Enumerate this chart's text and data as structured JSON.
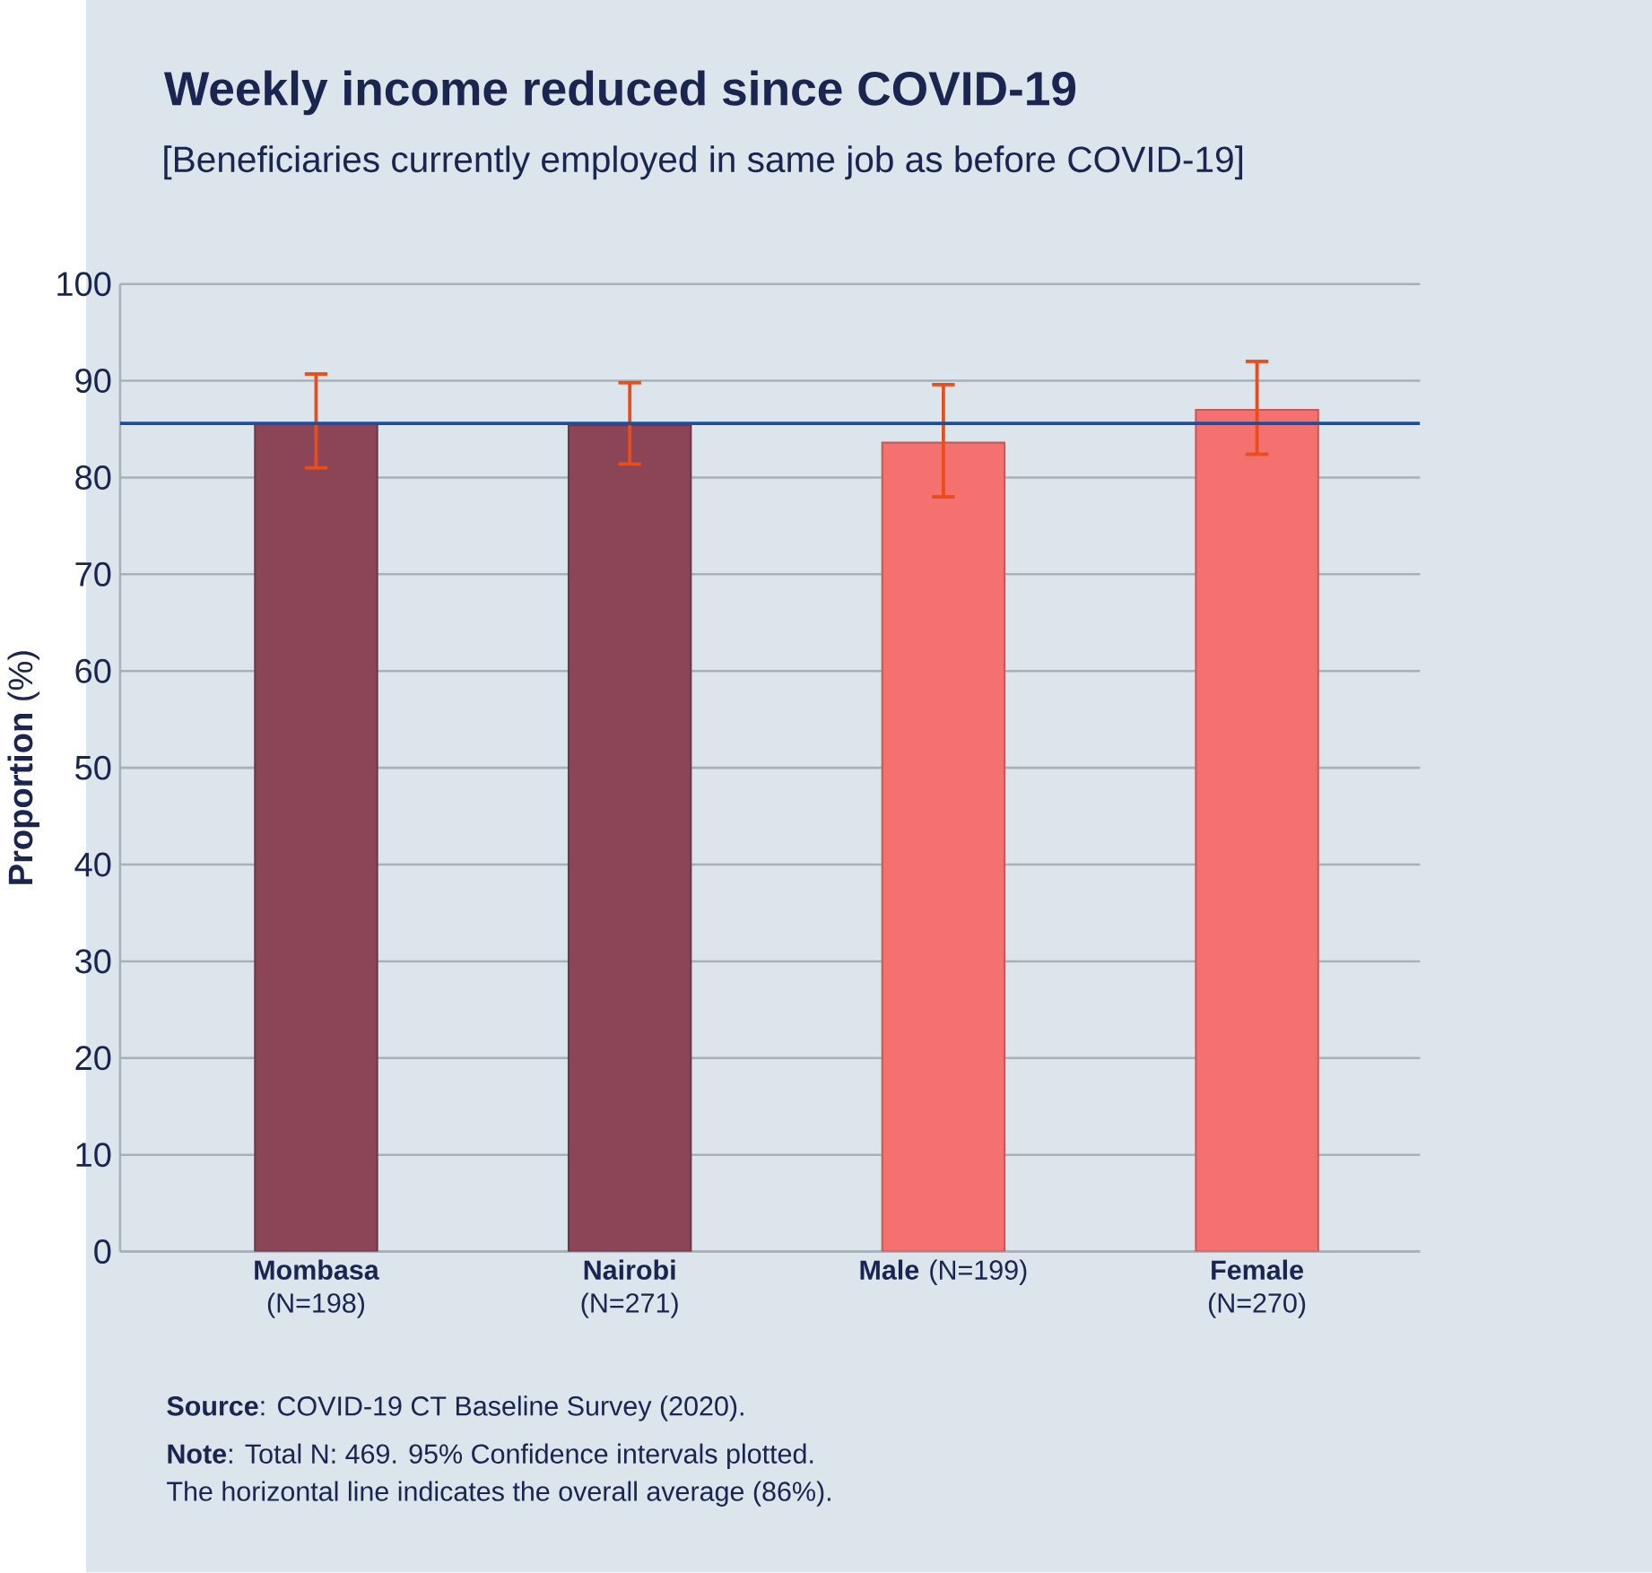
{
  "chart_data": {
    "type": "bar",
    "title": "Weekly income reduced since COVID-19",
    "subtitle": "[Beneficiaries currently employed in same job as before COVID-19]",
    "ylabel": "**Proportion** (%)",
    "categories": [
      "**Mombasa** (N=198)",
      "**Nairobi** (N=271)",
      "**Male** (N=199)",
      "**Female** (N=270)"
    ],
    "values": [
      85.6,
      85.4,
      83.6,
      87.0
    ],
    "colors": [
      "#8b4557",
      "#8b4557",
      "#f47170",
      "#f47170"
    ],
    "errors": [
      [
        81.0,
        90.7
      ],
      [
        81.4,
        89.8
      ],
      [
        78.0,
        89.6
      ],
      [
        82.4,
        92.0
      ]
    ],
    "ylim": [
      0,
      100
    ],
    "yticks": [
      0,
      10,
      20,
      30,
      40,
      50,
      60,
      70,
      80,
      90,
      100
    ],
    "grid": "y",
    "ref_lines": [
      {
        "axis": "y",
        "value": 85.6,
        "color": "#1a4fa0"
      }
    ],
    "annotations": [
      "**Source**: COVID-19 CT Baseline Survey (2020).",
      "**Note**: Total N: 469. 95% Confidence intervals plotted.",
      "The horizontal line indicates the overall average (86%)."
    ]
  }
}
